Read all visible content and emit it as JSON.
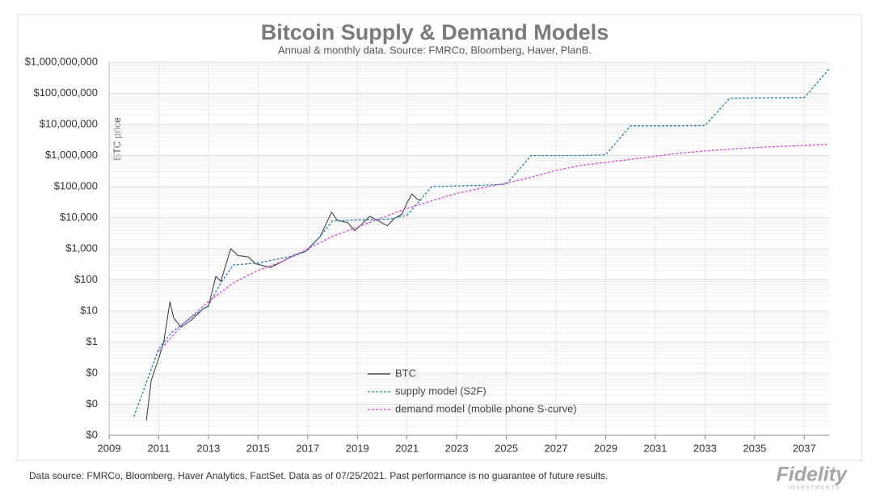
{
  "chart_data": {
    "type": "line",
    "title": "Bitcoin Supply & Demand Models",
    "subtitle": "Annual & monthly data.  Source: FMRCo, Bloomberg, Haver, PlanB.",
    "y_label": "BTC price",
    "footnote": "Data source: FMRCo, Bloomberg, Haver Analytics, FactSet. Data as of 07/25/2021. Past performance is no guarantee of future results.",
    "logo_text": "Fidelity",
    "logo_subtext": "INVESTMENTS",
    "ylog": true,
    "grid": true,
    "legend": "lower-center",
    "xlim": [
      2009,
      2038
    ],
    "xticks": [
      2009,
      2011,
      2013,
      2015,
      2017,
      2019,
      2021,
      2023,
      2025,
      2027,
      2029,
      2031,
      2033,
      2035,
      2037
    ],
    "ylim": [
      0.001,
      1000000000
    ],
    "yticks": [
      {
        "value": 0.001,
        "label": "$0"
      },
      {
        "value": 0.01,
        "label": "$0"
      },
      {
        "value": 0.1,
        "label": "$0"
      },
      {
        "value": 1,
        "label": "$1"
      },
      {
        "value": 10,
        "label": "$10"
      },
      {
        "value": 100,
        "label": "$100"
      },
      {
        "value": 1000,
        "label": "$1,000"
      },
      {
        "value": 10000,
        "label": "$10,000"
      },
      {
        "value": 100000,
        "label": "$100,000"
      },
      {
        "value": 1000000,
        "label": "$1,000,000"
      },
      {
        "value": 10000000,
        "label": "$10,000,000"
      },
      {
        "value": 100000000,
        "label": "$100,000,000"
      },
      {
        "value": 1000000000,
        "label": "$1,000,000,000"
      }
    ],
    "series": [
      {
        "name": "BTC",
        "color": "#333333",
        "line_style": "solid",
        "x": [
          2010.5,
          2010.7,
          2011.0,
          2011.2,
          2011.45,
          2011.6,
          2011.9,
          2012.3,
          2012.8,
          2013.0,
          2013.3,
          2013.5,
          2013.9,
          2014.2,
          2014.6,
          2014.9,
          2015.5,
          2016.0,
          2016.5,
          2016.9,
          2017.5,
          2017.96,
          2018.2,
          2018.6,
          2018.9,
          2019.5,
          2019.9,
          2020.2,
          2020.5,
          2020.8,
          2021.0,
          2021.2,
          2021.4,
          2021.55
        ],
        "values": [
          0.003,
          0.06,
          0.3,
          1,
          20,
          6,
          3,
          5,
          12,
          14,
          130,
          90,
          1000,
          600,
          550,
          330,
          250,
          400,
          650,
          800,
          2500,
          15000,
          8000,
          7000,
          3800,
          11000,
          7500,
          5500,
          9500,
          13000,
          30000,
          58000,
          40000,
          35000
        ]
      },
      {
        "name": "supply model (S2F)",
        "color": "#2a7fa8",
        "line_style": "dashed",
        "x": [
          2010.0,
          2010.5,
          2011.0,
          2011.5,
          2012.0,
          2012.5,
          2013.0,
          2013.5,
          2014.0,
          2015.0,
          2016.5,
          2017.0,
          2017.5,
          2018.0,
          2019.0,
          2020.3,
          2021.0,
          2022.0,
          2023.0,
          2024.0,
          2025.0,
          2026.0,
          2027.0,
          2028.0,
          2029.0,
          2030.0,
          2031.0,
          2032.0,
          2033.0,
          2034.0,
          2035.0,
          2036.0,
          2037.0,
          2038.0
        ],
        "values": [
          0.004,
          0.05,
          0.6,
          2,
          4,
          8,
          15,
          80,
          300,
          350,
          600,
          900,
          2500,
          8000,
          8500,
          9000,
          12000,
          100000,
          105000,
          110000,
          120000,
          1000000,
          1000000,
          1000000,
          1050000,
          9000000,
          9000000,
          9000000,
          9200000,
          70000000,
          71000000,
          72000000,
          73000000,
          600000000
        ]
      },
      {
        "name": "demand model (mobile phone S-curve)",
        "color": "#d24bd6",
        "line_style": "dashed",
        "x": [
          2011.0,
          2012.0,
          2013.0,
          2014.0,
          2015.0,
          2016.0,
          2017.0,
          2018.0,
          2019.0,
          2020.0,
          2021.0,
          2022.0,
          2023.0,
          2024.0,
          2025.0,
          2026.0,
          2027.0,
          2028.0,
          2029.0,
          2030.0,
          2031.0,
          2032.0,
          2033.0,
          2034.0,
          2035.0,
          2036.0,
          2037.0,
          2038.0
        ],
        "values": [
          0.5,
          4,
          20,
          80,
          200,
          400,
          1000,
          2500,
          5000,
          10000,
          20000,
          35000,
          60000,
          90000,
          130000,
          200000,
          330000,
          480000,
          600000,
          750000,
          950000,
          1200000,
          1400000,
          1600000,
          1800000,
          1950000,
          2100000,
          2300000
        ]
      }
    ]
  }
}
